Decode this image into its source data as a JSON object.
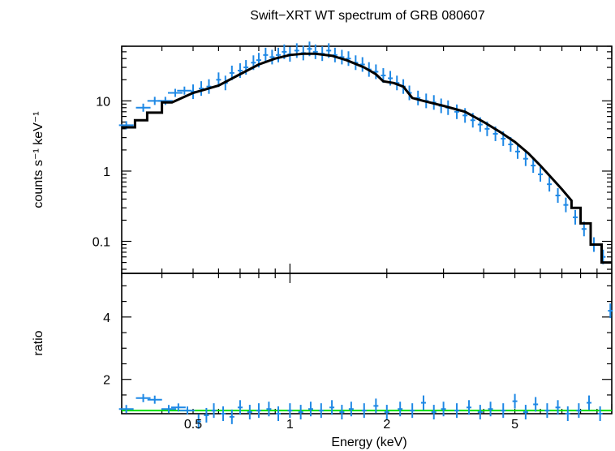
{
  "chart_data": {
    "type": "line",
    "title": "Swift−XRT WT spectrum of GRB 080607",
    "xlabel": "Energy (keV)",
    "xscale": "log",
    "xlim": [
      0.3,
      10
    ],
    "x_ticks": [
      {
        "value": 0.5,
        "label": "0.5"
      },
      {
        "value": 1,
        "label": "1"
      },
      {
        "value": 2,
        "label": "2"
      },
      {
        "value": 5,
        "label": "5"
      }
    ],
    "panels": [
      {
        "name": "spectrum",
        "ylabel": "counts s⁻¹ keV⁻¹",
        "yscale": "log",
        "ylim": [
          0.035,
          60
        ],
        "y_ticks": [
          {
            "value": 0.1,
            "label": "0.1"
          },
          {
            "value": 1,
            "label": "1"
          },
          {
            "value": 10,
            "label": "10"
          }
        ],
        "series": [
          {
            "kind": "data",
            "color": "#1e88e5",
            "points": [
              [
                0.31,
                4.5
              ],
              [
                0.35,
                8
              ],
              [
                0.38,
                10
              ],
              [
                0.41,
                10
              ],
              [
                0.44,
                13
              ],
              [
                0.47,
                14
              ],
              [
                0.5,
                13.5
              ],
              [
                0.53,
                15
              ],
              [
                0.56,
                16
              ],
              [
                0.6,
                20
              ],
              [
                0.63,
                18
              ],
              [
                0.66,
                25
              ],
              [
                0.7,
                27
              ],
              [
                0.73,
                30
              ],
              [
                0.77,
                35
              ],
              [
                0.8,
                38
              ],
              [
                0.84,
                45
              ],
              [
                0.88,
                42
              ],
              [
                0.92,
                45
              ],
              [
                0.96,
                50
              ],
              [
                1.0,
                46
              ],
              [
                1.05,
                52
              ],
              [
                1.1,
                48
              ],
              [
                1.15,
                55
              ],
              [
                1.2,
                50
              ],
              [
                1.26,
                47
              ],
              [
                1.32,
                52
              ],
              [
                1.38,
                45
              ],
              [
                1.45,
                42
              ],
              [
                1.52,
                40
              ],
              [
                1.6,
                35
              ],
              [
                1.68,
                33
              ],
              [
                1.76,
                28
              ],
              [
                1.85,
                26
              ],
              [
                1.95,
                23
              ],
              [
                2.05,
                21
              ],
              [
                2.15,
                18
              ],
              [
                2.25,
                16
              ],
              [
                2.35,
                13
              ],
              [
                2.5,
                11
              ],
              [
                2.65,
                10
              ],
              [
                2.8,
                9.5
              ],
              [
                2.95,
                8.5
              ],
              [
                3.1,
                8
              ],
              [
                3.3,
                7
              ],
              [
                3.5,
                6.2
              ],
              [
                3.7,
                5.3
              ],
              [
                3.9,
                4.6
              ],
              [
                4.1,
                4
              ],
              [
                4.35,
                3.4
              ],
              [
                4.6,
                2.9
              ],
              [
                4.85,
                2.4
              ],
              [
                5.1,
                1.9
              ],
              [
                5.4,
                1.5
              ],
              [
                5.7,
                1.2
              ],
              [
                6.0,
                0.9
              ],
              [
                6.4,
                0.65
              ],
              [
                6.8,
                0.45
              ],
              [
                7.2,
                0.33
              ],
              [
                7.7,
                0.22
              ],
              [
                8.2,
                0.15
              ],
              [
                8.8,
                0.09
              ],
              [
                9.4,
                0.06
              ]
            ]
          },
          {
            "kind": "model",
            "color": "#000000",
            "points": [
              [
                0.3,
                4.2
              ],
              [
                0.33,
                4.2
              ],
              [
                0.33,
                5.3
              ],
              [
                0.36,
                5.3
              ],
              [
                0.36,
                6.8
              ],
              [
                0.4,
                6.8
              ],
              [
                0.4,
                9.5
              ],
              [
                0.43,
                9.5
              ],
              [
                0.5,
                13
              ],
              [
                0.6,
                16.5
              ],
              [
                0.7,
                24
              ],
              [
                0.8,
                33
              ],
              [
                0.9,
                40
              ],
              [
                1.0,
                45
              ],
              [
                1.1,
                47
              ],
              [
                1.2,
                47
              ],
              [
                1.35,
                44
              ],
              [
                1.5,
                38
              ],
              [
                1.7,
                30
              ],
              [
                1.85,
                24
              ],
              [
                1.95,
                19
              ],
              [
                2.1,
                18
              ],
              [
                2.25,
                16
              ],
              [
                2.4,
                11
              ],
              [
                2.6,
                10
              ],
              [
                3.0,
                8.5
              ],
              [
                3.5,
                7
              ],
              [
                4.0,
                5
              ],
              [
                4.5,
                3.6
              ],
              [
                5.0,
                2.6
              ],
              [
                5.5,
                1.8
              ],
              [
                6.0,
                1.2
              ],
              [
                6.5,
                0.8
              ],
              [
                7.0,
                0.55
              ],
              [
                7.5,
                0.38
              ],
              [
                7.5,
                0.3
              ],
              [
                8.0,
                0.3
              ],
              [
                8.0,
                0.18
              ],
              [
                8.6,
                0.18
              ],
              [
                8.6,
                0.09
              ],
              [
                9.3,
                0.09
              ],
              [
                9.3,
                0.05
              ],
              [
                10,
                0.05
              ]
            ]
          }
        ]
      },
      {
        "name": "ratio",
        "ylabel": "ratio",
        "yscale": "linear",
        "ylim": [
          0.9,
          5.4
        ],
        "y_ticks": [
          {
            "value": 2,
            "label": "2"
          },
          {
            "value": 4,
            "label": "4"
          }
        ],
        "reference_line": {
          "y": 1,
          "color": "#00e000"
        },
        "series": [
          {
            "kind": "data",
            "color": "#1e88e5",
            "points": [
              [
                0.31,
                1.05
              ],
              [
                0.35,
                1.4
              ],
              [
                0.38,
                1.35
              ],
              [
                0.42,
                1.05
              ],
              [
                0.45,
                1.1
              ],
              [
                0.48,
                1.0
              ],
              [
                0.52,
                0.65
              ],
              [
                0.55,
                0.85
              ],
              [
                0.58,
                1.0
              ],
              [
                0.62,
                0.9
              ],
              [
                0.66,
                0.8
              ],
              [
                0.7,
                1.1
              ],
              [
                0.75,
                0.95
              ],
              [
                0.8,
                1.0
              ],
              [
                0.86,
                1.05
              ],
              [
                0.92,
                0.9
              ],
              [
                1.0,
                1.0
              ],
              [
                1.08,
                0.95
              ],
              [
                1.16,
                1.05
              ],
              [
                1.25,
                1.0
              ],
              [
                1.35,
                1.1
              ],
              [
                1.45,
                0.95
              ],
              [
                1.55,
                1.05
              ],
              [
                1.7,
                1.0
              ],
              [
                1.85,
                1.15
              ],
              [
                2.0,
                0.95
              ],
              [
                2.2,
                1.05
              ],
              [
                2.4,
                1.0
              ],
              [
                2.6,
                1.25
              ],
              [
                2.8,
                0.95
              ],
              [
                3.0,
                1.05
              ],
              [
                3.3,
                1.0
              ],
              [
                3.6,
                1.1
              ],
              [
                3.9,
                0.95
              ],
              [
                4.2,
                1.05
              ],
              [
                4.6,
                1.0
              ],
              [
                5.0,
                1.3
              ],
              [
                5.4,
                0.95
              ],
              [
                5.8,
                1.2
              ],
              [
                6.3,
                1.0
              ],
              [
                6.8,
                1.1
              ],
              [
                7.3,
                0.9
              ],
              [
                7.9,
                1.0
              ],
              [
                8.5,
                1.25
              ],
              [
                9.2,
                0.9
              ],
              [
                9.9,
                4.2
              ]
            ]
          }
        ]
      }
    ]
  }
}
